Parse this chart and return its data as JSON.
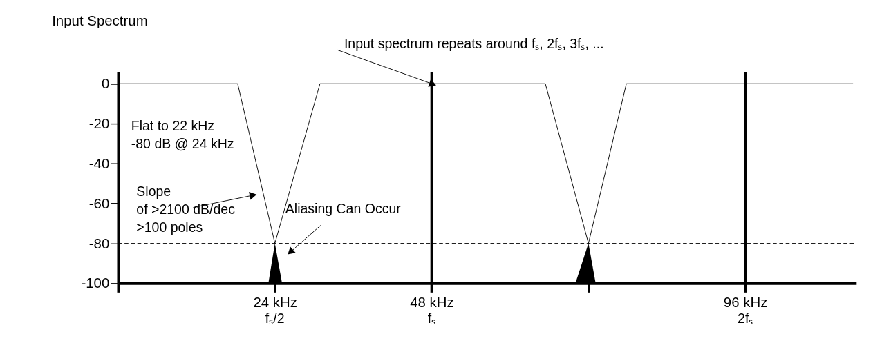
{
  "chart_data": {
    "type": "line",
    "title": "Input Spectrum",
    "x": [
      0,
      18.3,
      24,
      30.9,
      65.4,
      72,
      77.8,
      112.5
    ],
    "series": [
      {
        "color": "#000000",
        "values": [
          0,
          0,
          -80,
          0,
          0,
          -80,
          0,
          0
        ]
      },
      {
        "type": "area",
        "color": "#000000",
        "x": [
          23,
          24,
          25.1
        ],
        "values": [
          -100,
          -80,
          -100
        ]
      },
      {
        "type": "area",
        "color": "#000000",
        "x": [
          70,
          72,
          73.1
        ],
        "values": [
          -100,
          -80,
          -100
        ]
      }
    ],
    "xlim": [
      0,
      113
    ],
    "ylim": [
      -100,
      6
    ],
    "xticks": [
      {
        "value": 0,
        "label": null
      },
      {
        "value": 24,
        "label": "24 kHz"
      },
      {
        "value": 48,
        "label": "48 kHz"
      },
      {
        "value": 72,
        "label": null
      },
      {
        "value": 96,
        "label": "96 kHz"
      }
    ],
    "yticks": [
      0,
      -20,
      -40,
      -60,
      -80,
      -100
    ],
    "ref_lines": [
      {
        "axis": "y",
        "value": -80,
        "label": null,
        "color": "#000000",
        "line_style": "dashed"
      },
      {
        "axis": "x",
        "value": 48,
        "label": null,
        "color": "#000000",
        "line_style": "solid"
      },
      {
        "axis": "x",
        "value": 96,
        "label": null,
        "color": "#000000",
        "line_style": "solid"
      }
    ],
    "annotations": [
      {
        "text": "Input spectrum repeats around fₛ, 2fₛ, 3fₛ, ...",
        "x": 48,
        "y": 0
      },
      "Flat to 22 kHz\n-80 dB @ 24 kHz",
      {
        "text": "Slope\nof >2100 dB/dec\n>100 poles",
        "x": 20.5,
        "y": -56
      },
      {
        "text": "Aliasing Can Occur",
        "x": 26.5,
        "y": -84
      },
      "fₛ/2",
      "fₛ",
      "2fₛ"
    ],
    "marker": "none"
  }
}
